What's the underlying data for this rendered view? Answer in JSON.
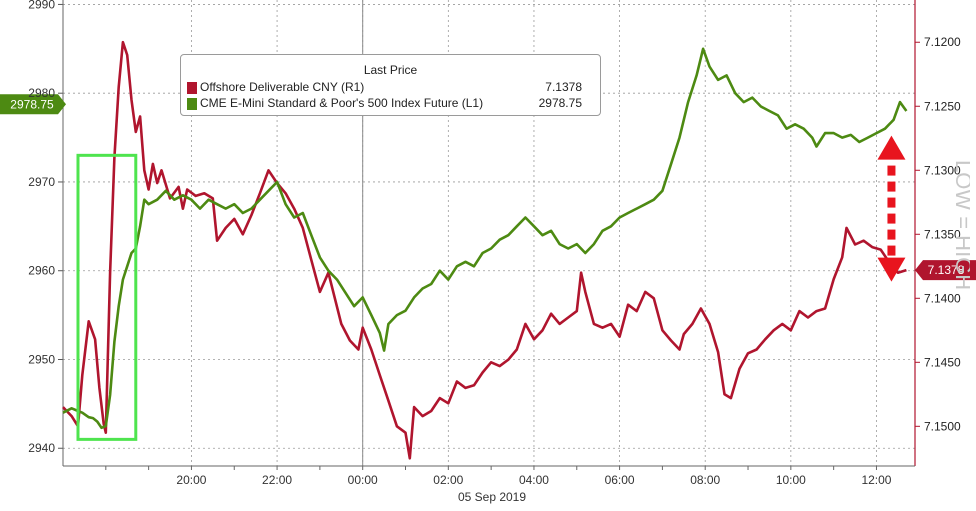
{
  "chart_data": {
    "type": "line",
    "title": "",
    "legend": {
      "heading": "Last Price",
      "placement": "top-left",
      "entries": [
        {
          "name": "Offshore Deliverable CNY  (R1)",
          "value": "7.1378",
          "color": "#b0152e"
        },
        {
          "name": "CME E-Mini Standard & Poor's 500 Index Future  (L1)",
          "value": "2978.75",
          "color": "#4d8a12"
        }
      ]
    },
    "x_axis": {
      "unit": "hours since 17:00 on 04 Sep 2019",
      "range": [
        0,
        19.9
      ],
      "tick_labels": [
        "20:00",
        "22:00",
        "00:00",
        "02:00",
        "04:00",
        "06:00",
        "08:00",
        "10:00",
        "12:00"
      ],
      "date_label": "05 Sep 2019"
    },
    "left_axis": {
      "range": [
        2938,
        2990.5
      ],
      "tick_labels": [
        "2940",
        "2950",
        "2960",
        "2970",
        "2980",
        "2990"
      ],
      "last_value_tag": "2978.75"
    },
    "right_axis": {
      "inverted": true,
      "range": [
        7.1167,
        7.1531
      ],
      "tick_labels": [
        "7.1200",
        "7.1250",
        "7.1300",
        "7.1350",
        "7.1400",
        "7.1450",
        "7.1500"
      ],
      "last_value_tag": "7.1378",
      "watermark": "LOW = HIGH"
    },
    "grid": true,
    "series": [
      {
        "name": "Offshore Deliverable CNY (R1)",
        "axis": "right",
        "color": "#b0152e",
        "points": [
          [
            0,
            7.1485
          ],
          [
            0.2,
            7.1492
          ],
          [
            0.35,
            7.15
          ],
          [
            0.45,
            7.146
          ],
          [
            0.6,
            7.1418
          ],
          [
            0.75,
            7.1432
          ],
          [
            0.85,
            7.147
          ],
          [
            0.95,
            7.1498
          ],
          [
            1.0,
            7.1505
          ],
          [
            1.1,
            7.138
          ],
          [
            1.2,
            7.129
          ],
          [
            1.3,
            7.1235
          ],
          [
            1.4,
            7.12
          ],
          [
            1.5,
            7.121
          ],
          [
            1.6,
            7.1245
          ],
          [
            1.7,
            7.127
          ],
          [
            1.8,
            7.1258
          ],
          [
            1.9,
            7.13
          ],
          [
            2.0,
            7.1315
          ],
          [
            2.1,
            7.1295
          ],
          [
            2.2,
            7.131
          ],
          [
            2.3,
            7.13
          ],
          [
            2.5,
            7.1322
          ],
          [
            2.7,
            7.1313
          ],
          [
            2.8,
            7.133
          ],
          [
            2.9,
            7.1315
          ],
          [
            3.1,
            7.132
          ],
          [
            3.3,
            7.1318
          ],
          [
            3.5,
            7.1322
          ],
          [
            3.6,
            7.1355
          ],
          [
            3.8,
            7.1345
          ],
          [
            4.0,
            7.1338
          ],
          [
            4.2,
            7.135
          ],
          [
            4.4,
            7.1335
          ],
          [
            4.6,
            7.1318
          ],
          [
            4.8,
            7.13
          ],
          [
            5.0,
            7.131
          ],
          [
            5.2,
            7.1318
          ],
          [
            5.4,
            7.133
          ],
          [
            5.6,
            7.1345
          ],
          [
            5.8,
            7.137
          ],
          [
            6.0,
            7.1395
          ],
          [
            6.2,
            7.138
          ],
          [
            6.5,
            7.142
          ],
          [
            6.7,
            7.1433
          ],
          [
            6.9,
            7.144
          ],
          [
            7.0,
            7.1423
          ],
          [
            7.2,
            7.144
          ],
          [
            7.4,
            7.146
          ],
          [
            7.6,
            7.148
          ],
          [
            7.8,
            7.15
          ],
          [
            8.0,
            7.1505
          ],
          [
            8.1,
            7.1525
          ],
          [
            8.2,
            7.1485
          ],
          [
            8.4,
            7.1492
          ],
          [
            8.6,
            7.1488
          ],
          [
            8.8,
            7.1478
          ],
          [
            9.0,
            7.1482
          ],
          [
            9.2,
            7.1465
          ],
          [
            9.4,
            7.147
          ],
          [
            9.6,
            7.1468
          ],
          [
            9.8,
            7.1458
          ],
          [
            10.0,
            7.145
          ],
          [
            10.2,
            7.1453
          ],
          [
            10.4,
            7.1448
          ],
          [
            10.6,
            7.144
          ],
          [
            10.8,
            7.142
          ],
          [
            11.0,
            7.1432
          ],
          [
            11.2,
            7.1425
          ],
          [
            11.4,
            7.1412
          ],
          [
            11.6,
            7.142
          ],
          [
            11.8,
            7.1415
          ],
          [
            12.0,
            7.141
          ],
          [
            12.1,
            7.138
          ],
          [
            12.2,
            7.1395
          ],
          [
            12.4,
            7.142
          ],
          [
            12.6,
            7.1423
          ],
          [
            12.8,
            7.142
          ],
          [
            13.0,
            7.143
          ],
          [
            13.2,
            7.1405
          ],
          [
            13.4,
            7.141
          ],
          [
            13.6,
            7.1395
          ],
          [
            13.8,
            7.14
          ],
          [
            14.0,
            7.1425
          ],
          [
            14.2,
            7.1433
          ],
          [
            14.4,
            7.144
          ],
          [
            14.5,
            7.1428
          ],
          [
            14.7,
            7.142
          ],
          [
            14.9,
            7.1408
          ],
          [
            15.1,
            7.142
          ],
          [
            15.3,
            7.1442
          ],
          [
            15.45,
            7.1475
          ],
          [
            15.6,
            7.1478
          ],
          [
            15.8,
            7.1455
          ],
          [
            16.0,
            7.1443
          ],
          [
            16.2,
            7.144
          ],
          [
            16.4,
            7.1432
          ],
          [
            16.6,
            7.1425
          ],
          [
            16.8,
            7.142
          ],
          [
            17.0,
            7.1425
          ],
          [
            17.2,
            7.141
          ],
          [
            17.4,
            7.1415
          ],
          [
            17.6,
            7.141
          ],
          [
            17.8,
            7.1408
          ],
          [
            18.0,
            7.1385
          ],
          [
            18.2,
            7.1368
          ],
          [
            18.3,
            7.1345
          ],
          [
            18.5,
            7.1358
          ],
          [
            18.7,
            7.1355
          ],
          [
            18.9,
            7.136
          ],
          [
            19.1,
            7.1362
          ],
          [
            19.3,
            7.1372
          ],
          [
            19.5,
            7.138
          ],
          [
            19.7,
            7.1378
          ]
        ]
      },
      {
        "name": "CME E-Mini Standard & Poor's 500 Index Future (L1)",
        "axis": "left",
        "color": "#4d8a12",
        "points": [
          [
            0,
            2944
          ],
          [
            0.2,
            2944.5
          ],
          [
            0.35,
            2944.2
          ],
          [
            0.45,
            2944
          ],
          [
            0.6,
            2943.5
          ],
          [
            0.7,
            2943.4
          ],
          [
            0.8,
            2943
          ],
          [
            0.9,
            2942.3
          ],
          [
            1.0,
            2942.5
          ],
          [
            1.1,
            2946
          ],
          [
            1.2,
            2952
          ],
          [
            1.3,
            2956
          ],
          [
            1.4,
            2959
          ],
          [
            1.5,
            2960.5
          ],
          [
            1.6,
            2962
          ],
          [
            1.7,
            2962.5
          ],
          [
            1.8,
            2965
          ],
          [
            1.9,
            2968
          ],
          [
            2.0,
            2967.5
          ],
          [
            2.2,
            2968
          ],
          [
            2.4,
            2969
          ],
          [
            2.6,
            2968
          ],
          [
            2.8,
            2968.5
          ],
          [
            3.0,
            2968
          ],
          [
            3.2,
            2967
          ],
          [
            3.4,
            2968
          ],
          [
            3.6,
            2967.5
          ],
          [
            3.8,
            2967
          ],
          [
            4.0,
            2967.5
          ],
          [
            4.2,
            2966.5
          ],
          [
            4.4,
            2967
          ],
          [
            4.6,
            2968
          ],
          [
            4.8,
            2969
          ],
          [
            5.0,
            2970
          ],
          [
            5.2,
            2967.5
          ],
          [
            5.4,
            2966
          ],
          [
            5.6,
            2966.5
          ],
          [
            5.8,
            2964
          ],
          [
            6.0,
            2961.5
          ],
          [
            6.2,
            2960
          ],
          [
            6.4,
            2959
          ],
          [
            6.6,
            2957.5
          ],
          [
            6.8,
            2956
          ],
          [
            7.0,
            2957
          ],
          [
            7.2,
            2955
          ],
          [
            7.4,
            2953
          ],
          [
            7.5,
            2951
          ],
          [
            7.6,
            2954
          ],
          [
            7.8,
            2955
          ],
          [
            8.0,
            2955.5
          ],
          [
            8.2,
            2957
          ],
          [
            8.4,
            2958
          ],
          [
            8.6,
            2958.5
          ],
          [
            8.8,
            2960
          ],
          [
            9.0,
            2959
          ],
          [
            9.2,
            2960.5
          ],
          [
            9.4,
            2961
          ],
          [
            9.6,
            2960.5
          ],
          [
            9.8,
            2962
          ],
          [
            10.0,
            2962.5
          ],
          [
            10.2,
            2963.5
          ],
          [
            10.4,
            2964
          ],
          [
            10.6,
            2965
          ],
          [
            10.8,
            2966
          ],
          [
            11.0,
            2965
          ],
          [
            11.2,
            2964
          ],
          [
            11.4,
            2964.5
          ],
          [
            11.6,
            2963
          ],
          [
            11.8,
            2962.5
          ],
          [
            12.0,
            2963
          ],
          [
            12.2,
            2962
          ],
          [
            12.4,
            2963
          ],
          [
            12.6,
            2964.5
          ],
          [
            12.8,
            2965
          ],
          [
            13.0,
            2966
          ],
          [
            13.2,
            2966.5
          ],
          [
            13.4,
            2967
          ],
          [
            13.6,
            2967.5
          ],
          [
            13.8,
            2968
          ],
          [
            14.0,
            2969
          ],
          [
            14.2,
            2972
          ],
          [
            14.4,
            2975
          ],
          [
            14.6,
            2979
          ],
          [
            14.8,
            2982
          ],
          [
            14.95,
            2985
          ],
          [
            15.1,
            2983
          ],
          [
            15.3,
            2981.5
          ],
          [
            15.5,
            2982
          ],
          [
            15.7,
            2980
          ],
          [
            15.9,
            2979
          ],
          [
            16.1,
            2979.5
          ],
          [
            16.3,
            2978.5
          ],
          [
            16.5,
            2978
          ],
          [
            16.7,
            2977.5
          ],
          [
            16.9,
            2976
          ],
          [
            17.1,
            2976.5
          ],
          [
            17.3,
            2976
          ],
          [
            17.5,
            2975
          ],
          [
            17.6,
            2974
          ],
          [
            17.8,
            2975.5
          ],
          [
            18.0,
            2975.5
          ],
          [
            18.2,
            2975
          ],
          [
            18.4,
            2975.3
          ],
          [
            18.6,
            2974.5
          ],
          [
            18.8,
            2975
          ],
          [
            19.0,
            2975.5
          ],
          [
            19.2,
            2976
          ],
          [
            19.4,
            2977
          ],
          [
            19.55,
            2979
          ],
          [
            19.7,
            2978
          ]
        ]
      }
    ],
    "annotations": [
      {
        "kind": "highlight-box",
        "color": "#4ee44e",
        "x_range": [
          0.35,
          1.7
        ],
        "y_range": [
          2941,
          2973
        ]
      },
      {
        "kind": "double-arrow",
        "color": "#e8141e",
        "x": 19.35,
        "y_range": [
          2975,
          2959
        ]
      }
    ]
  }
}
